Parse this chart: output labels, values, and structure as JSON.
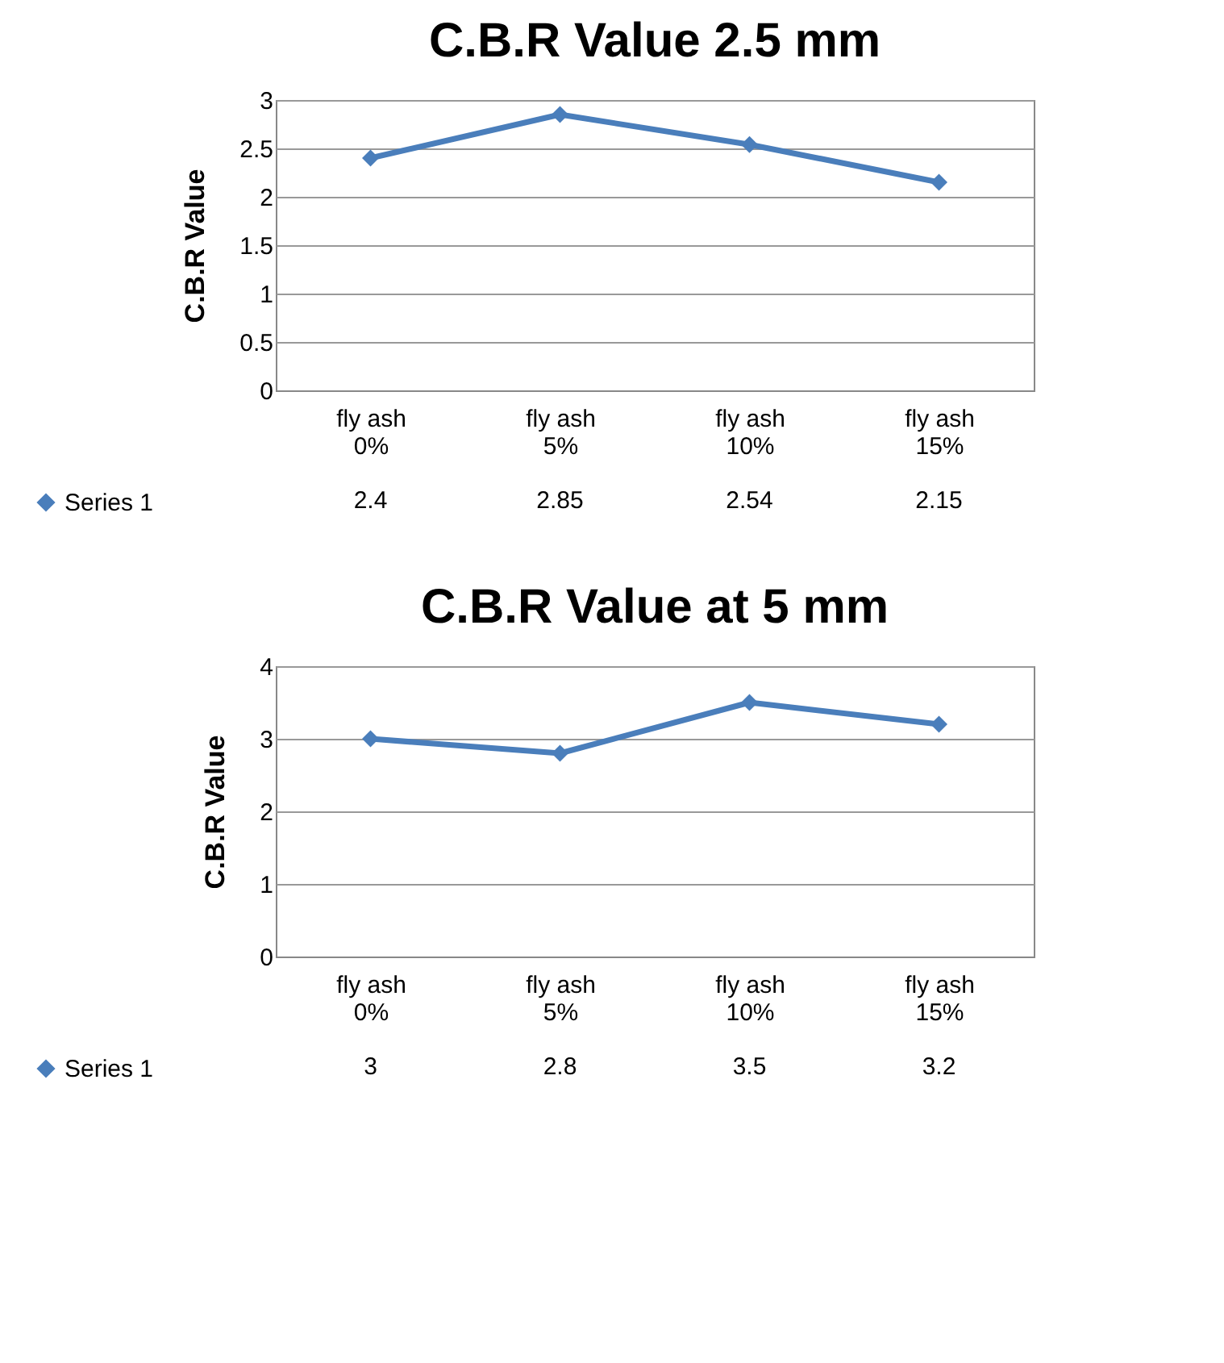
{
  "chart_data": [
    {
      "type": "line",
      "title": "C.B.R Value 2.5 mm",
      "ylabel": "C.B.R Value",
      "categories": [
        "fly ash 0%",
        "fly ash 5%",
        "fly ash 10%",
        "fly ash 15%"
      ],
      "series": [
        {
          "name": "Series 1",
          "color": "#4a7ebb",
          "values": [
            2.4,
            2.85,
            2.54,
            2.15
          ]
        }
      ],
      "ylim": [
        0,
        3
      ],
      "yticks": [
        0,
        0.5,
        1,
        1.5,
        2,
        2.5,
        3
      ],
      "grid": "y",
      "marker": "diamond",
      "line_style": "solid",
      "data_labels": true,
      "legend": "bottom left"
    },
    {
      "type": "line",
      "title": "C.B.R Value at 5 mm",
      "ylabel": "C.B.R Value",
      "categories": [
        "fly ash 0%",
        "fly ash 5%",
        "fly ash 10%",
        "fly ash 15%"
      ],
      "series": [
        {
          "name": "Series 1",
          "color": "#4a7ebb",
          "values": [
            3,
            2.8,
            3.5,
            3.2
          ]
        }
      ],
      "ylim": [
        0,
        4
      ],
      "yticks": [
        0,
        1,
        2,
        3,
        4
      ],
      "grid": "y",
      "marker": "diamond",
      "line_style": "solid",
      "data_labels": true,
      "legend": "bottom left"
    }
  ]
}
